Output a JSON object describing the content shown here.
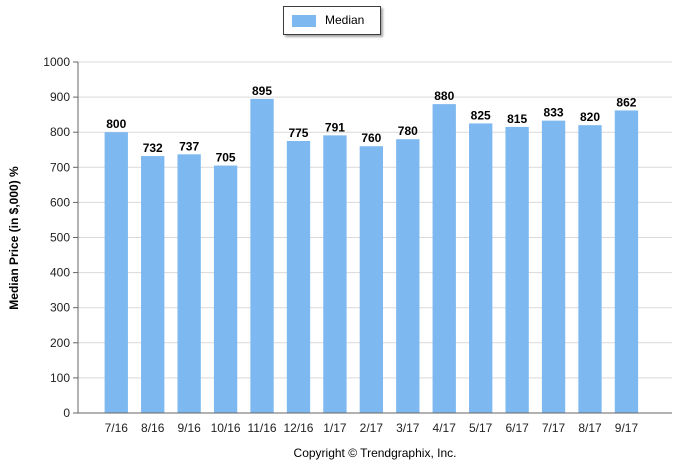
{
  "chart_data": {
    "type": "bar",
    "categories": [
      "7/16",
      "8/16",
      "9/16",
      "10/16",
      "11/16",
      "12/16",
      "1/17",
      "2/17",
      "3/17",
      "4/17",
      "5/17",
      "6/17",
      "7/17",
      "8/17",
      "9/17"
    ],
    "series": [
      {
        "name": "Median",
        "values": [
          800,
          732,
          737,
          705,
          895,
          775,
          791,
          760,
          780,
          880,
          825,
          815,
          833,
          820,
          862
        ],
        "color": "#7db8f0"
      }
    ],
    "title": "",
    "xlabel": "",
    "ylabel": "Median Price (in $,000) %",
    "ylim": [
      0,
      1000
    ],
    "yticks": [
      0,
      100,
      200,
      300,
      400,
      500,
      600,
      700,
      800,
      900,
      1000
    ],
    "grid": true,
    "legend_position": "top-center",
    "data_labels": true
  },
  "footnote": "Copyright © Trendgraphix, Inc."
}
